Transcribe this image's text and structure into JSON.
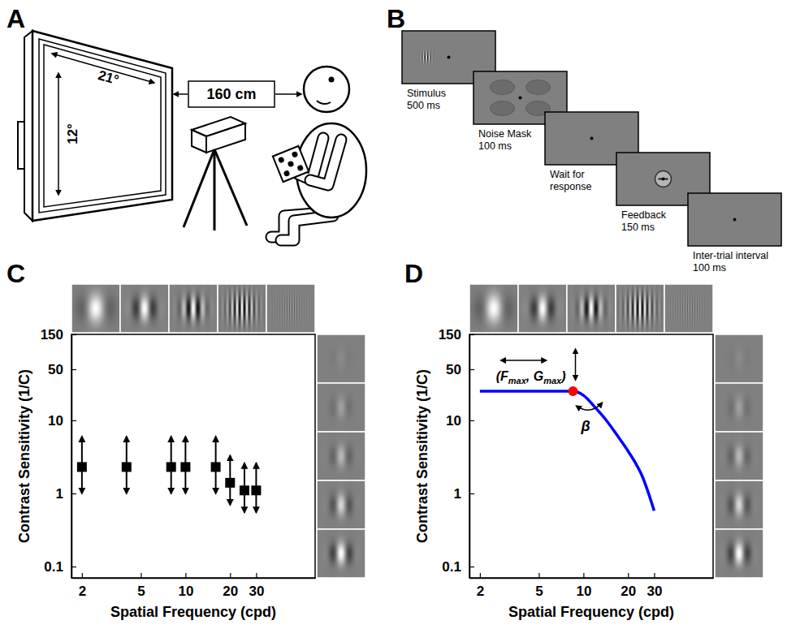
{
  "panel_letters": [
    "A",
    "B",
    "C",
    "D"
  ],
  "setup_diagram": {
    "width_angle": "21°",
    "height_angle": "12°",
    "distance": "160 cm"
  },
  "trial_sequence": {
    "screens": [
      {
        "lines": [
          "Stimulus",
          "500 ms"
        ]
      },
      {
        "lines": [
          "Noise Mask",
          "100 ms"
        ]
      },
      {
        "lines": [
          "Wait for",
          "response"
        ]
      },
      {
        "lines": [
          "Feedback",
          "150 ms"
        ]
      },
      {
        "lines": [
          "Inter-trial interval",
          "100 ms"
        ]
      }
    ]
  },
  "chart_data": [
    {
      "type": "scatter",
      "x_label": "Spatial Frequency (cpd)",
      "y_label": "Contrast Sensitivity (1/C)",
      "x": [
        2,
        4,
        8,
        10,
        16,
        20,
        25,
        30
      ],
      "series": [
        {
          "values": [
            2.3,
            2.3,
            2.3,
            2.3,
            2.3,
            1.4,
            1.1,
            1.1
          ],
          "lower": [
            1,
            1,
            1,
            1,
            1,
            0.7,
            0.55,
            0.55
          ],
          "upper": [
            6,
            6,
            6,
            6,
            6,
            3.3,
            2.6,
            2.6
          ],
          "color": "#000000",
          "marker": "square"
        }
      ],
      "xlim": [
        1.7,
        75
      ],
      "ylim": [
        0.07,
        150
      ],
      "xticks": [
        2,
        5,
        10,
        20,
        30
      ],
      "yticks": [
        0.1,
        1,
        10,
        50,
        150
      ],
      "log": true
    },
    {
      "type": "line",
      "x_label": "Spatial Frequency (cpd)",
      "y_label": "Contrast Sensitivity (1/C)",
      "x": [
        2,
        3,
        4,
        5,
        6,
        7,
        8.5,
        10,
        12,
        14,
        16,
        18,
        20,
        22,
        25,
        28,
        30
      ],
      "series": [
        {
          "values": [
            25,
            25,
            25,
            25,
            25,
            25,
            25,
            22,
            15,
            10.5,
            7.3,
            5.2,
            3.8,
            2.8,
            1.7,
            0.9,
            0.58
          ],
          "color": "#0000ff"
        }
      ],
      "peak": {
        "x": 8.5,
        "y": 25,
        "color": "#ff0000"
      },
      "peak_label": [
        {
          "text": "(F"
        },
        {
          "text": "max",
          "sub": true
        },
        {
          "text": ", G"
        },
        {
          "text": "max",
          "sub": true
        },
        {
          "text": ")"
        }
      ],
      "beta_label": "β",
      "xlim": [
        1.7,
        75
      ],
      "ylim": [
        0.07,
        150
      ],
      "xticks": [
        2,
        5,
        10,
        20,
        30
      ],
      "yticks": [
        0.1,
        1,
        10,
        50,
        150
      ],
      "log": true
    }
  ]
}
